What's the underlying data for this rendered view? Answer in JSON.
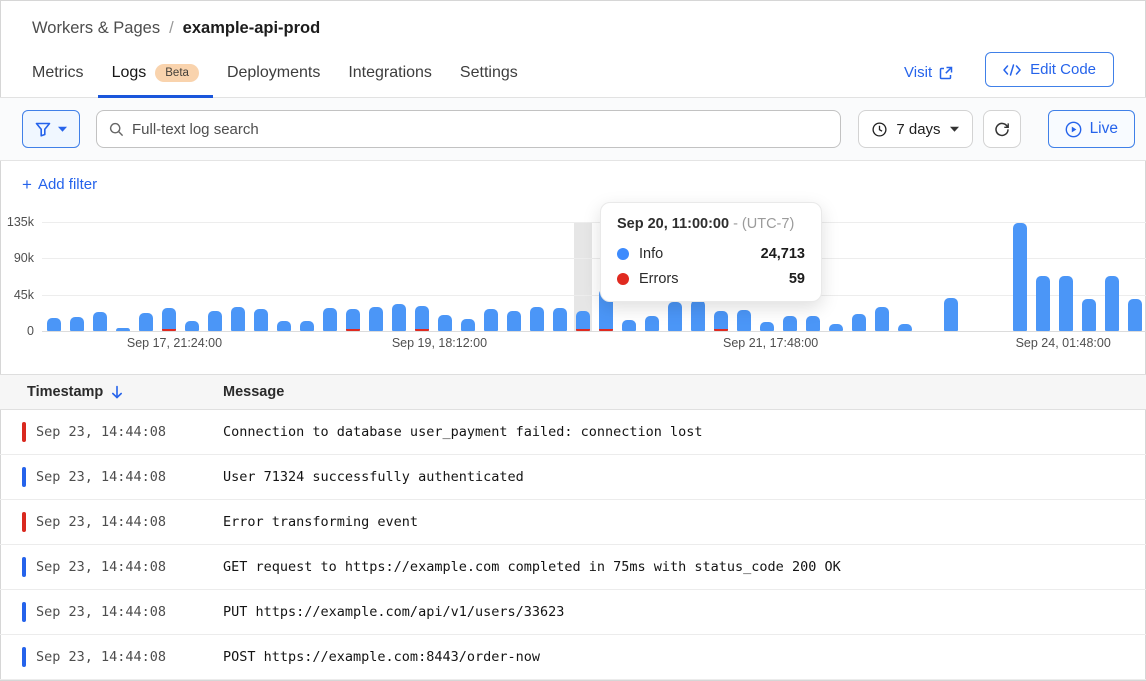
{
  "breadcrumb": {
    "parent": "Workers & Pages",
    "separator": "/",
    "current": "example-api-prod"
  },
  "tabs": {
    "items": [
      {
        "label": "Metrics",
        "active": false
      },
      {
        "label": "Logs",
        "active": true,
        "badge": "Beta"
      },
      {
        "label": "Deployments",
        "active": false
      },
      {
        "label": "Integrations",
        "active": false
      },
      {
        "label": "Settings",
        "active": false
      }
    ]
  },
  "actions": {
    "visit": "Visit",
    "edit_code": "Edit Code"
  },
  "toolbar": {
    "search_placeholder": "Full-text log search",
    "time_range": "7 days",
    "live": "Live"
  },
  "filters": {
    "add_filter": "Add filter",
    "plus": "+"
  },
  "chart_data": {
    "type": "bar",
    "stacked": true,
    "series_names": [
      "Info",
      "Errors"
    ],
    "ylim": [
      0,
      135000
    ],
    "grid": true,
    "y_ticks": [
      {
        "label": "0",
        "value": 0
      },
      {
        "label": "45k",
        "value": 45000
      },
      {
        "label": "90k",
        "value": 90000
      },
      {
        "label": "135k",
        "value": 135000
      }
    ],
    "x_ticks": [
      {
        "label": "Sep 17, 21:24:00",
        "pct": 12
      },
      {
        "label": "Sep 19, 18:12:00",
        "pct": 36
      },
      {
        "label": "Sep 21, 17:48:00",
        "pct": 66
      },
      {
        "label": "Sep 24, 01:48:00",
        "pct": 92.5
      }
    ],
    "hover_index": 23,
    "bars": [
      {
        "info": 16000,
        "errors": 0
      },
      {
        "info": 17000,
        "errors": 0
      },
      {
        "info": 23000,
        "errors": 0
      },
      {
        "info": 4000,
        "errors": 0
      },
      {
        "info": 22000,
        "errors": 0
      },
      {
        "info": 28000,
        "errors": 400
      },
      {
        "info": 12000,
        "errors": 0
      },
      {
        "info": 25000,
        "errors": 0
      },
      {
        "info": 30000,
        "errors": 0
      },
      {
        "info": 27000,
        "errors": 0
      },
      {
        "info": 12000,
        "errors": 0
      },
      {
        "info": 13000,
        "errors": 0
      },
      {
        "info": 28000,
        "errors": 0
      },
      {
        "info": 27000,
        "errors": 300
      },
      {
        "info": 30000,
        "errors": 0
      },
      {
        "info": 33000,
        "errors": 0
      },
      {
        "info": 30000,
        "errors": 500
      },
      {
        "info": 20000,
        "errors": 0
      },
      {
        "info": 15000,
        "errors": 0
      },
      {
        "info": 27000,
        "errors": 0
      },
      {
        "info": 25000,
        "errors": 0
      },
      {
        "info": 30000,
        "errors": 0
      },
      {
        "info": 28000,
        "errors": 0
      },
      {
        "info": 24713,
        "errors": 59
      },
      {
        "info": 50500,
        "errors": 1500
      },
      {
        "info": 14000,
        "errors": 0
      },
      {
        "info": 18000,
        "errors": 0
      },
      {
        "info": 36000,
        "errors": 0
      },
      {
        "info": 38000,
        "errors": 0
      },
      {
        "info": 25000,
        "errors": 400
      },
      {
        "info": 26000,
        "errors": 0
      },
      {
        "info": 11000,
        "errors": 0
      },
      {
        "info": 19000,
        "errors": 0
      },
      {
        "info": 19000,
        "errors": 0
      },
      {
        "info": 9000,
        "errors": 0
      },
      {
        "info": 21000,
        "errors": 0
      },
      {
        "info": 30000,
        "errors": 0
      },
      {
        "info": 9000,
        "errors": 0
      },
      {
        "info": 0,
        "errors": 0
      },
      {
        "info": 41000,
        "errors": 0
      },
      {
        "info": 0,
        "errors": 0
      },
      {
        "info": 0,
        "errors": 0
      },
      {
        "info": 134000,
        "errors": 0
      },
      {
        "info": 68000,
        "errors": 0
      },
      {
        "info": 68000,
        "errors": 0
      },
      {
        "info": 40000,
        "errors": 0
      },
      {
        "info": 68000,
        "errors": 0
      },
      {
        "info": 40000,
        "errors": 0
      }
    ],
    "colors": {
      "info": "#4b96f7",
      "errors": "#e02a20",
      "hover_band": "#e6e6e6"
    }
  },
  "tooltip": {
    "title": "Sep 20, 11:00:00",
    "title_suffix": "- (UTC-7)",
    "rows": [
      {
        "label": "Info",
        "value": "24,713",
        "color": "#3d8bfd"
      },
      {
        "label": "Errors",
        "value": "59",
        "color": "#e02a20"
      }
    ]
  },
  "table": {
    "columns": [
      {
        "label": "Timestamp",
        "sorted": "desc"
      },
      {
        "label": "Message"
      }
    ],
    "rows": [
      {
        "level": "error",
        "timestamp": "Sep 23, 14:44:08",
        "message": "Connection to database user_payment failed: connection lost"
      },
      {
        "level": "info",
        "timestamp": "Sep 23, 14:44:08",
        "message": "User 71324 successfully authenticated"
      },
      {
        "level": "error",
        "timestamp": "Sep 23, 14:44:08",
        "message": "Error transforming event"
      },
      {
        "level": "info",
        "timestamp": "Sep 23, 14:44:08",
        "message": "GET request to https://example.com completed in 75ms with status_code 200 OK"
      },
      {
        "level": "info",
        "timestamp": "Sep 23, 14:44:08",
        "message": "PUT https://example.com/api/v1/users/33623"
      },
      {
        "level": "info",
        "timestamp": "Sep 23, 14:44:08",
        "message": "POST https://example.com:8443/order-now"
      }
    ]
  }
}
